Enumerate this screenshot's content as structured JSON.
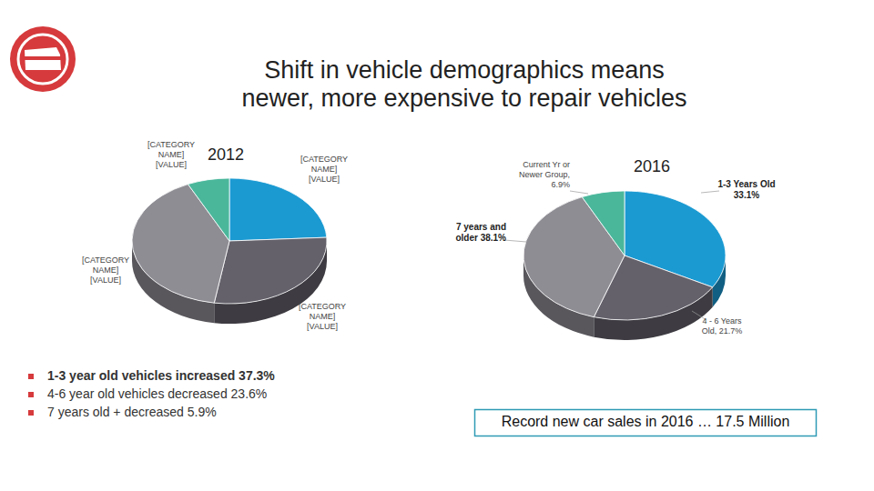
{
  "title": [
    "Shift in vehicle demographics means",
    "newer, more expensive to repair vehicles"
  ],
  "chart_data": [
    {
      "type": "pie",
      "title": "2012",
      "categories": [
        "[CATEGORY NAME]",
        "[CATEGORY NAME]",
        "[CATEGORY NAME]",
        "[CATEGORY NAME]"
      ],
      "values": [
        24.1,
        28.4,
        40.5,
        7.0
      ],
      "value_labels": [
        "[VALUE]",
        "[VALUE]",
        "[VALUE]",
        "[VALUE]"
      ],
      "colors": [
        "#1b9ad2",
        "#64616b",
        "#8f8d94",
        "#4ab79b"
      ],
      "data_labels": true
    },
    {
      "type": "pie",
      "title": "2016",
      "categories": [
        "1-3 Years Old",
        "4 - 6 Years Old,",
        "7 years and older",
        "Current Yr or Newer Group,"
      ],
      "values": [
        33.1,
        21.7,
        38.1,
        6.9
      ],
      "value_labels": [
        "33.1%",
        "21.7%",
        "38.1%",
        "6.9%"
      ],
      "colors": [
        "#1b9ad2",
        "#64616b",
        "#8f8d94",
        "#4ab79b"
      ],
      "data_labels": true
    }
  ],
  "bullets": [
    "1-3 year old vehicles increased 37.3%",
    "4-6 year old vehicles decreased 23.6%",
    "7 years old + decreased 5.9%"
  ],
  "callout": "Record new car sales in 2016 … 17.5 Million"
}
